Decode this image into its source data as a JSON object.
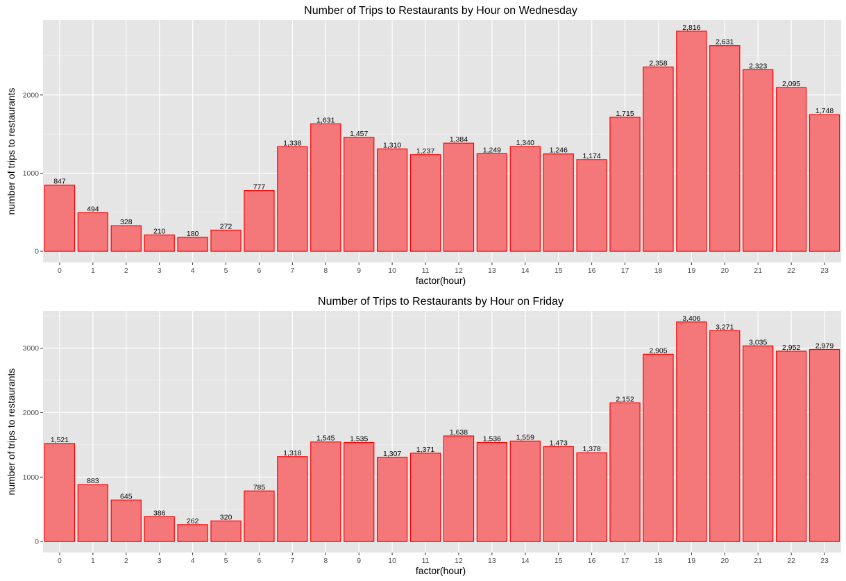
{
  "chart_data": [
    {
      "type": "bar",
      "title": "Number of Trips to Restaurants by Hour on Wednesday",
      "xlabel": "factor(hour)",
      "ylabel": "number of trips to restaurants",
      "categories": [
        "0",
        "1",
        "2",
        "3",
        "4",
        "5",
        "6",
        "7",
        "8",
        "9",
        "10",
        "11",
        "12",
        "13",
        "14",
        "15",
        "16",
        "17",
        "18",
        "19",
        "20",
        "21",
        "22",
        "23"
      ],
      "values": [
        847,
        494,
        328,
        210,
        180,
        272,
        777,
        1338,
        1631,
        1457,
        1310,
        1237,
        1384,
        1249,
        1340,
        1246,
        1174,
        1715,
        2358,
        2816,
        2631,
        2323,
        2095,
        1748
      ],
      "value_labels": [
        "847",
        "494",
        "328",
        "210",
        "180",
        "272",
        "777",
        "1,338",
        "1,631",
        "1,457",
        "1,310",
        "1,237",
        "1,384",
        "1,249",
        "1,340",
        "1,246",
        "1,174",
        "1,715",
        "2,358",
        "2,816",
        "2,631",
        "2,323",
        "2,095",
        "1,748"
      ],
      "yticks": [
        0,
        1000,
        2000
      ],
      "ytick_labels": [
        "0",
        "1000",
        "2000"
      ],
      "ylim": [
        -141,
        2957
      ],
      "grid": true,
      "fill_color": "#f4777a",
      "stroke_color": "#ff0000",
      "panel_color": "#e5e5e5"
    },
    {
      "type": "bar",
      "title": "Number of Trips to Restaurants by Hour on Friday",
      "xlabel": "factor(hour)",
      "ylabel": "number of trips to restaurants",
      "categories": [
        "0",
        "1",
        "2",
        "3",
        "4",
        "5",
        "6",
        "7",
        "8",
        "9",
        "10",
        "11",
        "12",
        "13",
        "14",
        "15",
        "16",
        "17",
        "18",
        "19",
        "20",
        "21",
        "22",
        "23"
      ],
      "values": [
        1521,
        883,
        645,
        386,
        262,
        320,
        785,
        1318,
        1545,
        1535,
        1307,
        1371,
        1638,
        1536,
        1559,
        1473,
        1378,
        2152,
        2905,
        3406,
        3271,
        3035,
        2952,
        2979
      ],
      "value_labels": [
        "1,521",
        "883",
        "645",
        "386",
        "262",
        "320",
        "785",
        "1,318",
        "1,545",
        "1,535",
        "1,307",
        "1,371",
        "1,638",
        "1,536",
        "1,559",
        "1,473",
        "1,378",
        "2,152",
        "2,905",
        "3,406",
        "3,271",
        "3,035",
        "2,952",
        "2,979"
      ],
      "yticks": [
        0,
        1000,
        2000,
        3000
      ],
      "ytick_labels": [
        "0",
        "1000",
        "2000",
        "3000"
      ],
      "ylim": [
        -170,
        3576
      ],
      "grid": true,
      "fill_color": "#f4777a",
      "stroke_color": "#ff0000",
      "panel_color": "#e5e5e5"
    }
  ]
}
